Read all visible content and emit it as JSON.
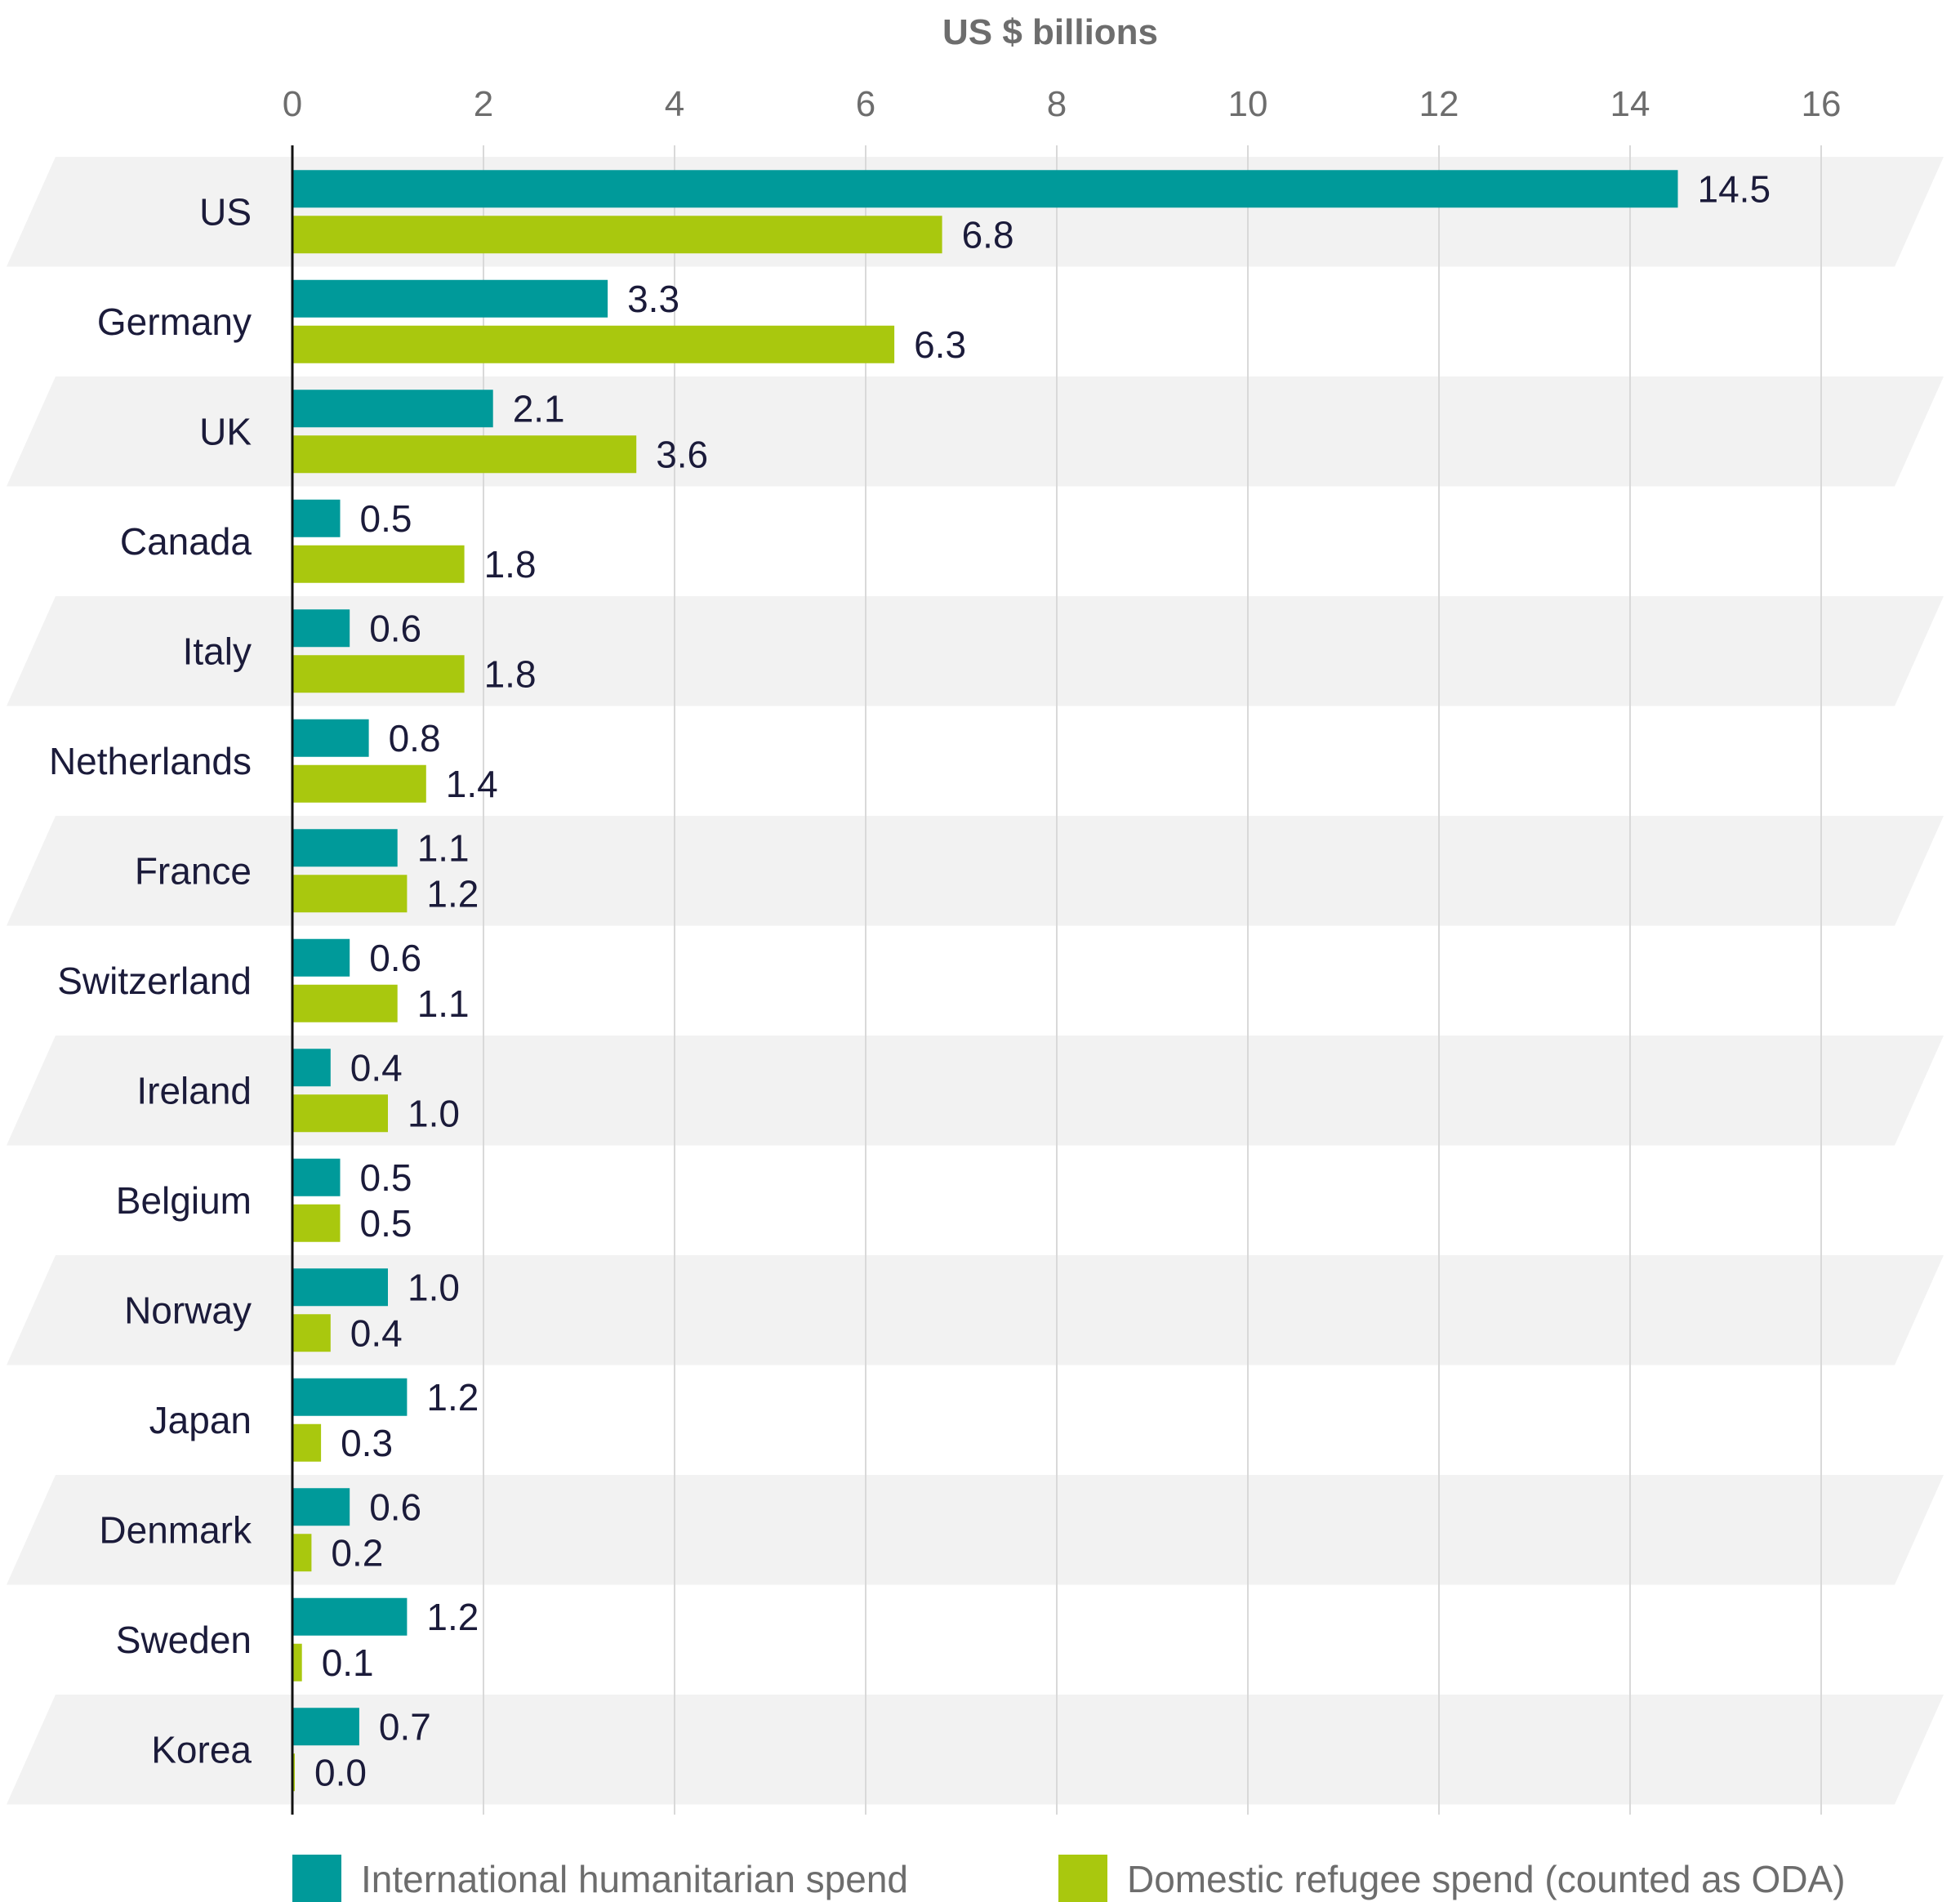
{
  "chart_data": {
    "type": "bar",
    "orientation": "horizontal",
    "xlabel": "US $ billions",
    "xlim": [
      0,
      16
    ],
    "xticks": [
      0,
      2,
      4,
      6,
      8,
      10,
      12,
      14,
      16
    ],
    "grid": "vertical",
    "legend_position": "bottom",
    "categories": [
      "US",
      "Germany",
      "UK",
      "Canada",
      "Italy",
      "Netherlands",
      "France",
      "Switzerland",
      "Ireland",
      "Belgium",
      "Norway",
      "Japan",
      "Denmark",
      "Sweden",
      "Korea"
    ],
    "series": [
      {
        "name": "International humanitarian spend",
        "color": "#009a9a",
        "values": [
          14.5,
          3.3,
          2.1,
          0.5,
          0.6,
          0.8,
          1.1,
          0.6,
          0.4,
          0.5,
          1.0,
          1.2,
          0.6,
          1.2,
          0.7
        ],
        "labels": [
          "14.5",
          "3.3",
          "2.1",
          "0.5",
          "0.6",
          "0.8",
          "1.1",
          "0.6",
          "0.4",
          "0.5",
          "1.0",
          "1.2",
          "0.6",
          "1.2",
          "0.7"
        ]
      },
      {
        "name": "Domestic refugee spend (counted as ODA)",
        "color": "#a9c80e",
        "values": [
          6.8,
          6.3,
          3.6,
          1.8,
          1.8,
          1.4,
          1.2,
          1.1,
          1.0,
          0.5,
          0.4,
          0.3,
          0.2,
          0.1,
          0.0
        ],
        "labels": [
          "6.8",
          "6.3",
          "3.6",
          "1.8",
          "1.8",
          "1.4",
          "1.2",
          "1.1",
          "1.0",
          "0.5",
          "0.4",
          "0.3",
          "0.2",
          "0.1",
          "0.0"
        ]
      }
    ],
    "band_color": "#f2f2f2",
    "grid_color": "#d9d9d9"
  }
}
